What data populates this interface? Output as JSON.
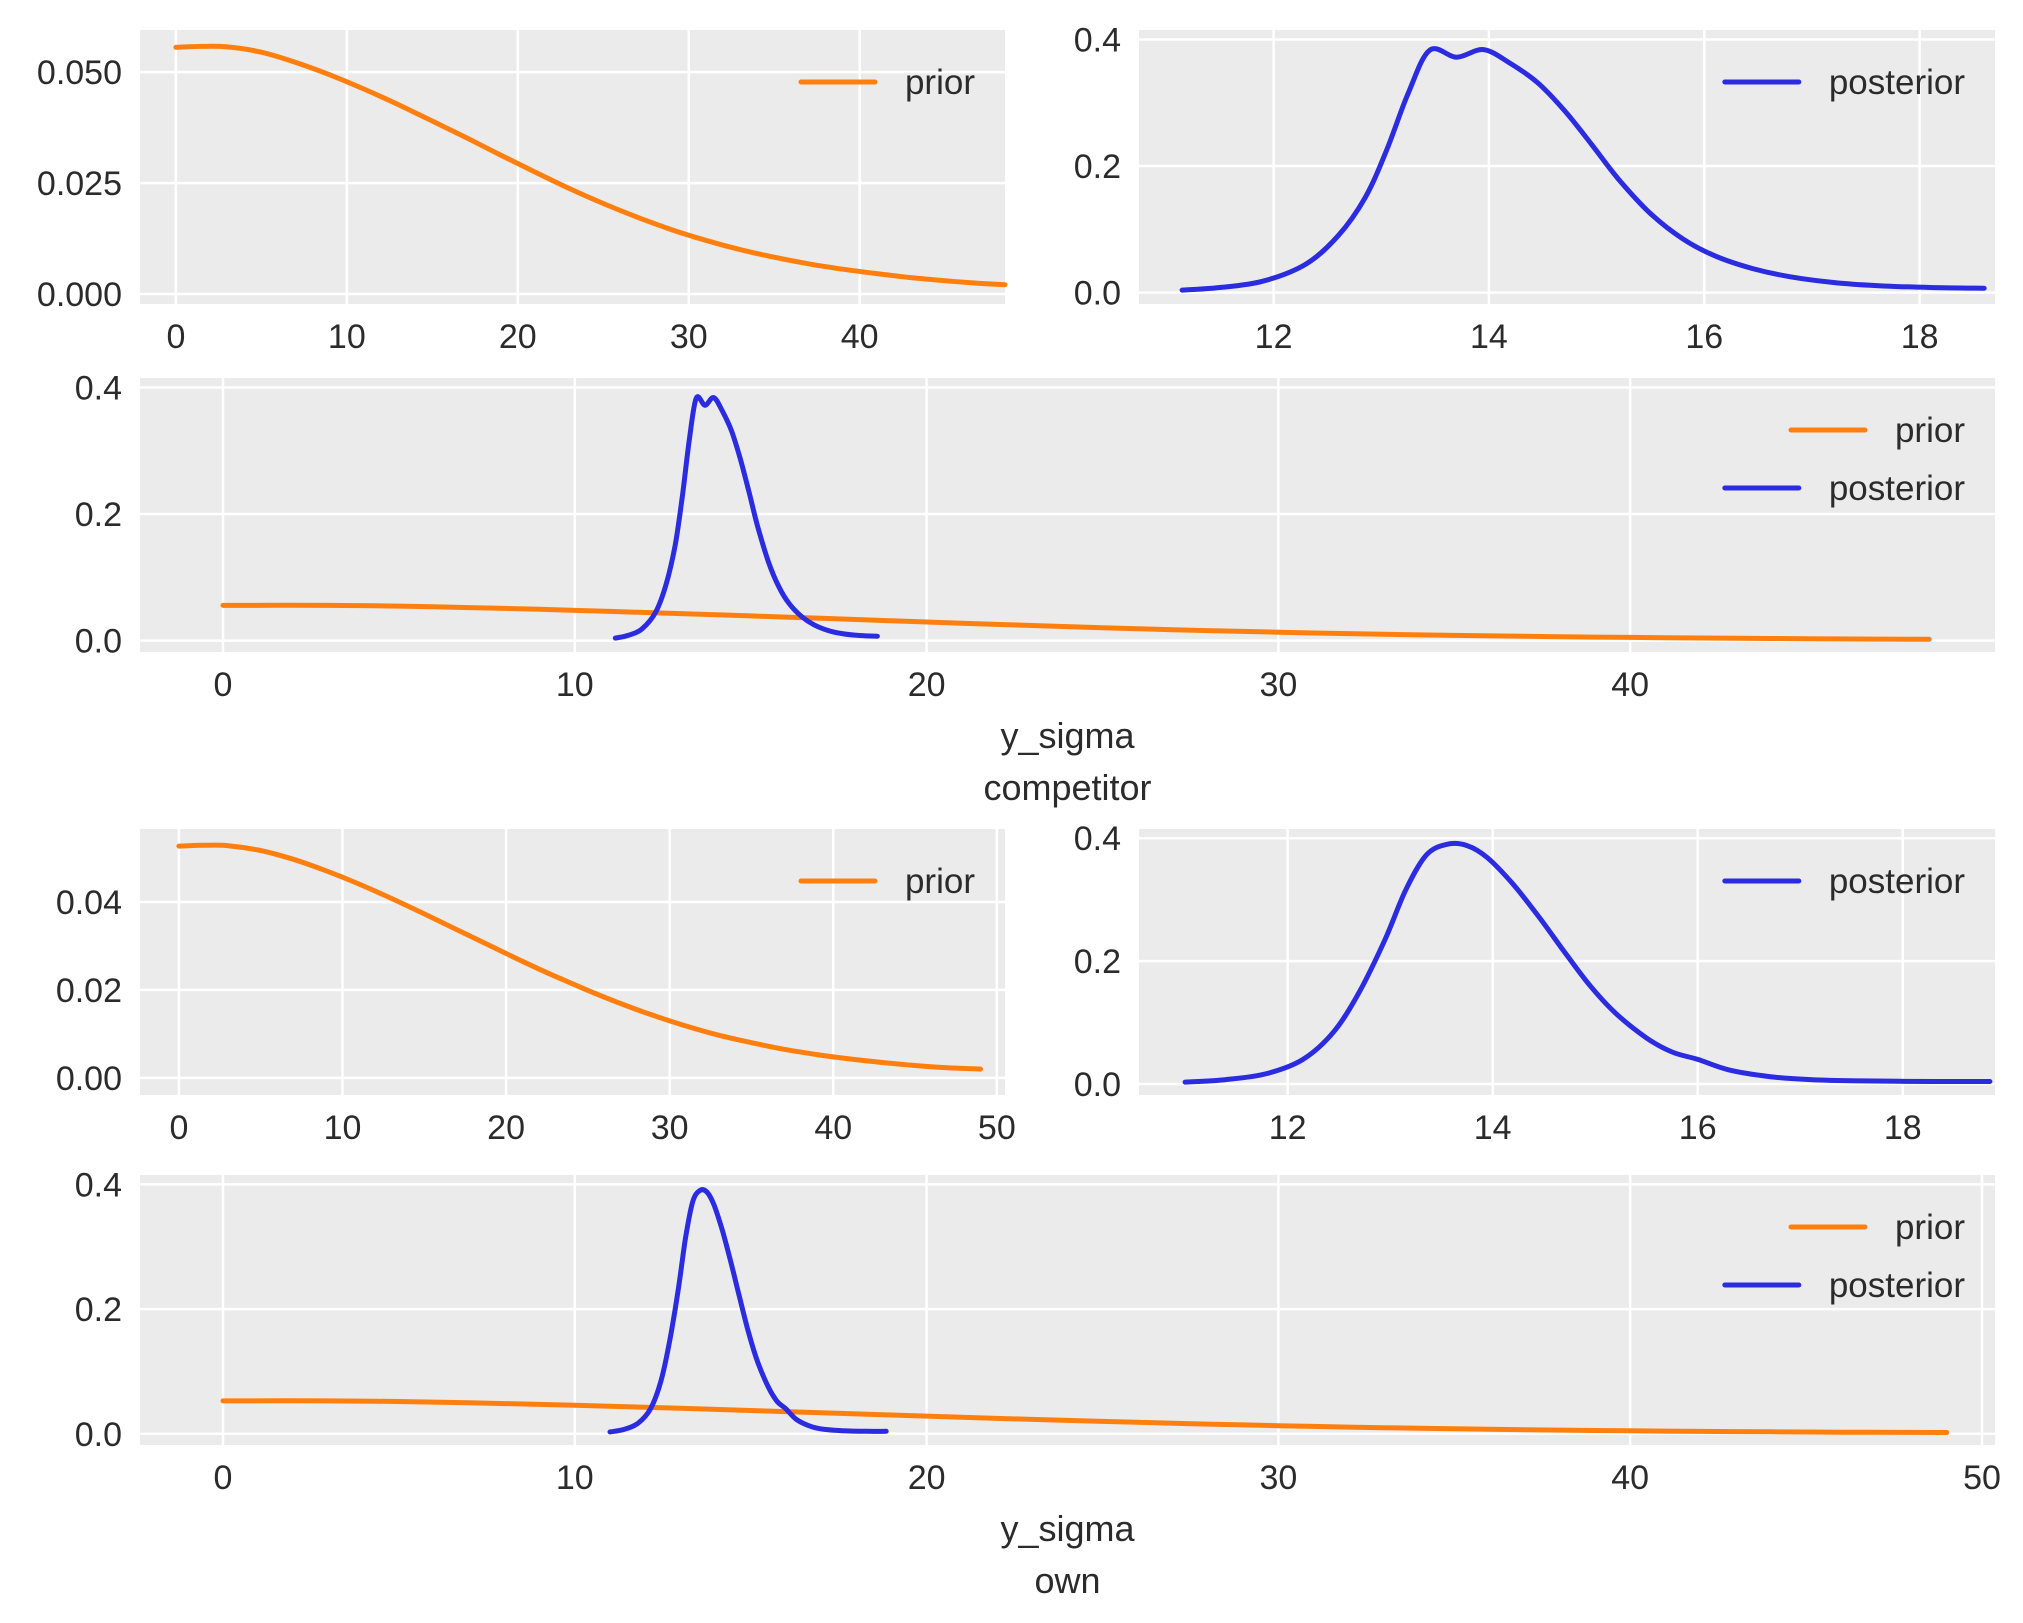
{
  "figure": {
    "background": "#ffffff"
  },
  "style": {
    "plot_bg": "#ebebeb",
    "grid_color": "#ffffff",
    "text_color": "#2b2b2b",
    "prior_color": "#ff7f0e",
    "posterior_color": "#2b2be0"
  },
  "chart_data": {
    "type": "line",
    "description": "Prior and posterior kernel-density curves for y_sigma parameters",
    "legend_labels": {
      "prior": "prior",
      "posterior": "posterior"
    },
    "sections": [
      {
        "name": "competitor",
        "xlabel_lines": [
          "y_sigma",
          "competitor"
        ],
        "series": {
          "prior": {
            "label": "prior",
            "color": "#ff7f0e",
            "points": [
              [
                0,
                0.0556
              ],
              [
                1.5,
                0.0558
              ],
              [
                3,
                0.0557
              ],
              [
                5,
                0.0545
              ],
              [
                7,
                0.0522
              ],
              [
                9,
                0.0494
              ],
              [
                11,
                0.0462
              ],
              [
                13,
                0.0427
              ],
              [
                15,
                0.039
              ],
              [
                17,
                0.0352
              ],
              [
                19,
                0.0313
              ],
              [
                21,
                0.0275
              ],
              [
                23,
                0.0238
              ],
              [
                25,
                0.0204
              ],
              [
                27,
                0.0173
              ],
              [
                29,
                0.0145
              ],
              [
                31,
                0.0121
              ],
              [
                33,
                0.01
              ],
              [
                35,
                0.0083
              ],
              [
                37,
                0.0068
              ],
              [
                39,
                0.0056
              ],
              [
                41,
                0.0046
              ],
              [
                43,
                0.0037
              ],
              [
                45,
                0.003
              ],
              [
                47,
                0.0024
              ],
              [
                48.5,
                0.0021
              ]
            ]
          },
          "posterior": {
            "label": "posterior",
            "color": "#2b2be0",
            "points": [
              [
                11.15,
                0.004
              ],
              [
                11.5,
                0.008
              ],
              [
                11.9,
                0.018
              ],
              [
                12.3,
                0.045
              ],
              [
                12.6,
                0.09
              ],
              [
                12.85,
                0.15
              ],
              [
                13.05,
                0.225
              ],
              [
                13.25,
                0.315
              ],
              [
                13.45,
                0.383
              ],
              [
                13.7,
                0.372
              ],
              [
                13.95,
                0.384
              ],
              [
                14.2,
                0.362
              ],
              [
                14.45,
                0.332
              ],
              [
                14.7,
                0.288
              ],
              [
                14.95,
                0.235
              ],
              [
                15.2,
                0.18
              ],
              [
                15.5,
                0.125
              ],
              [
                15.8,
                0.085
              ],
              [
                16.1,
                0.058
              ],
              [
                16.45,
                0.038
              ],
              [
                16.8,
                0.025
              ],
              [
                17.2,
                0.016
              ],
              [
                17.6,
                0.011
              ],
              [
                18.1,
                0.008
              ],
              [
                18.6,
                0.007
              ]
            ]
          }
        },
        "plots": [
          {
            "id": "competitor-prior",
            "show": [
              "prior"
            ],
            "legend": [
              "prior"
            ],
            "x_range": [
              -2.1,
              48.5
            ],
            "y_range": [
              -0.00225,
              0.0595
            ],
            "x_ticks": [
              [
                0,
                "0"
              ],
              [
                10,
                "10"
              ],
              [
                20,
                "20"
              ],
              [
                30,
                "30"
              ],
              [
                40,
                "40"
              ]
            ],
            "y_ticks": [
              [
                0,
                "0.000"
              ],
              [
                0.025,
                "0.025"
              ],
              [
                0.05,
                "0.050"
              ]
            ]
          },
          {
            "id": "competitor-posterior",
            "show": [
              "posterior"
            ],
            "legend": [
              "posterior"
            ],
            "x_range": [
              10.75,
              18.7
            ],
            "y_range": [
              -0.018,
              0.415
            ],
            "x_ticks": [
              [
                12,
                "12"
              ],
              [
                14,
                "14"
              ],
              [
                16,
                "16"
              ],
              [
                18,
                "18"
              ]
            ],
            "y_ticks": [
              [
                0,
                "0.0"
              ],
              [
                0.2,
                "0.2"
              ],
              [
                0.4,
                "0.4"
              ]
            ]
          },
          {
            "id": "competitor-both",
            "show": [
              "prior",
              "posterior"
            ],
            "legend": [
              "prior",
              "posterior"
            ],
            "x_range": [
              -2.36,
              50.37
            ],
            "y_range": [
              -0.018,
              0.415
            ],
            "x_ticks": [
              [
                0,
                "0"
              ],
              [
                10,
                "10"
              ],
              [
                20,
                "20"
              ],
              [
                30,
                "30"
              ],
              [
                40,
                "40"
              ]
            ],
            "y_ticks": [
              [
                0,
                "0.0"
              ],
              [
                0.2,
                "0.2"
              ],
              [
                0.4,
                "0.4"
              ]
            ]
          }
        ]
      },
      {
        "name": "own",
        "xlabel_lines": [
          "y_sigma",
          "own"
        ],
        "series": {
          "prior": {
            "label": "prior",
            "color": "#ff7f0e",
            "points": [
              [
                0,
                0.0527
              ],
              [
                1.5,
                0.0529
              ],
              [
                3,
                0.0528
              ],
              [
                5,
                0.0517
              ],
              [
                7,
                0.0497
              ],
              [
                9,
                0.0471
              ],
              [
                11,
                0.0441
              ],
              [
                13,
                0.0408
              ],
              [
                15,
                0.0373
              ],
              [
                17,
                0.0337
              ],
              [
                19,
                0.0301
              ],
              [
                21,
                0.0265
              ],
              [
                23,
                0.0231
              ],
              [
                25,
                0.0199
              ],
              [
                27,
                0.0169
              ],
              [
                29,
                0.0142
              ],
              [
                31,
                0.0118
              ],
              [
                33,
                0.0097
              ],
              [
                35,
                0.008
              ],
              [
                37,
                0.0065
              ],
              [
                39,
                0.0053
              ],
              [
                41,
                0.0043
              ],
              [
                43,
                0.0035
              ],
              [
                45,
                0.0028
              ],
              [
                47,
                0.0023
              ],
              [
                49,
                0.002
              ]
            ]
          },
          "posterior": {
            "label": "posterior",
            "color": "#2b2be0",
            "points": [
              [
                11.0,
                0.003
              ],
              [
                11.4,
                0.007
              ],
              [
                11.8,
                0.017
              ],
              [
                12.15,
                0.04
              ],
              [
                12.45,
                0.085
              ],
              [
                12.7,
                0.15
              ],
              [
                12.95,
                0.235
              ],
              [
                13.15,
                0.315
              ],
              [
                13.35,
                0.372
              ],
              [
                13.55,
                0.39
              ],
              [
                13.75,
                0.388
              ],
              [
                13.95,
                0.368
              ],
              [
                14.2,
                0.325
              ],
              [
                14.45,
                0.272
              ],
              [
                14.7,
                0.215
              ],
              [
                14.95,
                0.16
              ],
              [
                15.2,
                0.115
              ],
              [
                15.5,
                0.075
              ],
              [
                15.75,
                0.052
              ],
              [
                16.0,
                0.04
              ],
              [
                16.3,
                0.023
              ],
              [
                16.7,
                0.012
              ],
              [
                17.1,
                0.007
              ],
              [
                17.6,
                0.005
              ],
              [
                18.3,
                0.004
              ],
              [
                18.85,
                0.004
              ]
            ]
          }
        },
        "plots": [
          {
            "id": "own-prior",
            "show": [
              "prior"
            ],
            "legend": [
              "prior"
            ],
            "x_range": [
              -2.38,
              50.5
            ],
            "y_range": [
              -0.0039,
              0.0566
            ],
            "x_ticks": [
              [
                0,
                "0"
              ],
              [
                10,
                "10"
              ],
              [
                20,
                "20"
              ],
              [
                30,
                "30"
              ],
              [
                40,
                "40"
              ],
              [
                50,
                "50"
              ]
            ],
            "y_ticks": [
              [
                0,
                "0.00"
              ],
              [
                0.02,
                "0.02"
              ],
              [
                0.04,
                "0.04"
              ]
            ]
          },
          {
            "id": "own-posterior",
            "show": [
              "posterior"
            ],
            "legend": [
              "posterior"
            ],
            "x_range": [
              10.55,
              18.9
            ],
            "y_range": [
              -0.018,
              0.415
            ],
            "x_ticks": [
              [
                12,
                "12"
              ],
              [
                14,
                "14"
              ],
              [
                16,
                "16"
              ],
              [
                18,
                "18"
              ]
            ],
            "y_ticks": [
              [
                0,
                "0.0"
              ],
              [
                0.2,
                "0.2"
              ],
              [
                0.4,
                "0.4"
              ]
            ]
          },
          {
            "id": "own-both",
            "show": [
              "prior",
              "posterior"
            ],
            "legend": [
              "prior",
              "posterior"
            ],
            "x_range": [
              -2.36,
              50.37
            ],
            "y_range": [
              -0.018,
              0.415
            ],
            "x_ticks": [
              [
                0,
                "0"
              ],
              [
                10,
                "10"
              ],
              [
                20,
                "20"
              ],
              [
                30,
                "30"
              ],
              [
                40,
                "40"
              ],
              [
                50,
                "50"
              ]
            ],
            "y_ticks": [
              [
                0,
                "0.0"
              ],
              [
                0.2,
                "0.2"
              ],
              [
                0.4,
                "0.4"
              ]
            ]
          }
        ]
      }
    ]
  }
}
